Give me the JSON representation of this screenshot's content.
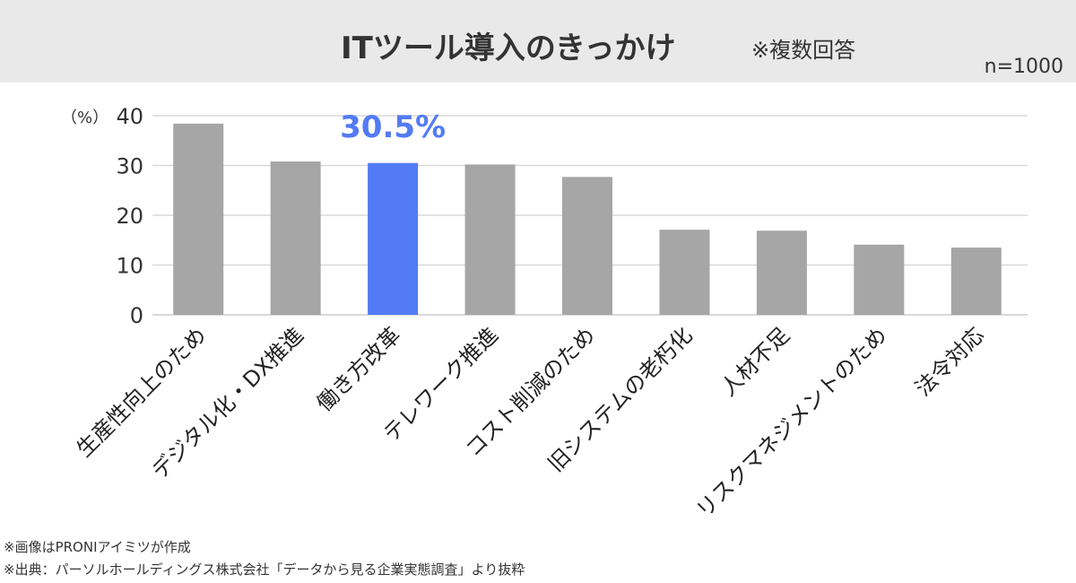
{
  "header": {
    "title": "ITツール導入のきっかけ",
    "note": "※複数回答",
    "sample": "n=1000"
  },
  "footnotes": [
    "※画像はPRONIアイミツが作成",
    "※出典：パーソルホールディングス株式会社「データから見る企業実態調査」より抜粋"
  ],
  "chart_data": {
    "type": "bar",
    "title": "ITツール導入のきっかけ",
    "ylabel": "（%）",
    "ylim": [
      0,
      40
    ],
    "yticks": [
      0,
      10,
      20,
      30,
      40
    ],
    "grid": true,
    "categories": [
      "生産性向上のため",
      "デジタル化・DX推進",
      "働き方改革",
      "テレワーク推進",
      "コスト削減のため",
      "旧システムの老朽化",
      "人材不足",
      "リスクマネジメントのため",
      "法令対応"
    ],
    "values": [
      38.4,
      30.8,
      30.5,
      30.2,
      27.7,
      17.1,
      16.9,
      14.1,
      13.5
    ],
    "highlight_index": 2,
    "highlight_label": "30.5%",
    "colors": {
      "bar": "#a6a6a6",
      "highlight": "#537bf5",
      "grid": "#d9d9d9"
    }
  }
}
